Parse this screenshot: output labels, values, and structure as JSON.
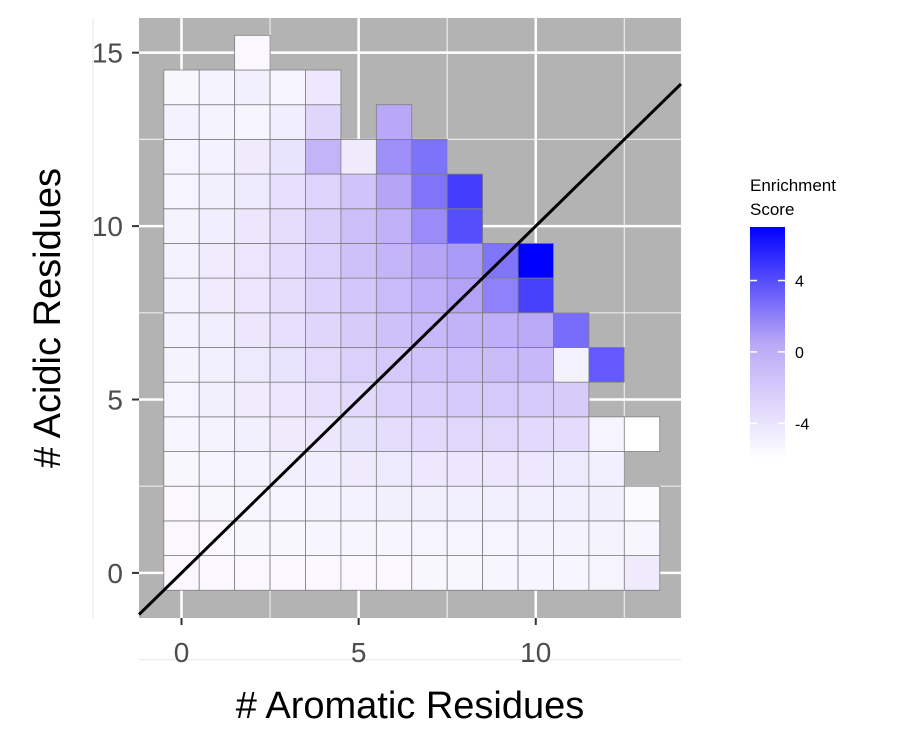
{
  "chart_data": {
    "type": "heatmap",
    "title": "",
    "xlabel": "# Aromatic Residues",
    "ylabel": "# Acidic Residues",
    "xlim": [
      -1.2,
      14.1
    ],
    "ylim": [
      -1.3,
      16.0
    ],
    "x_ticks": [
      0,
      5,
      10
    ],
    "y_ticks": [
      0,
      5,
      10,
      15
    ],
    "grid": true,
    "background_color": "#b3b3b3",
    "reference_line": {
      "slope": 1,
      "intercept": 0,
      "color": "#000000"
    },
    "legend": {
      "title_line1": "Enrichment",
      "title_line2": "Score",
      "position": "right",
      "ticks": [
        4,
        0,
        -4
      ],
      "range": [
        -6,
        7
      ],
      "colors": {
        "low": "#ffffff",
        "mid": "#b9a8f7",
        "high": "#0000ff"
      }
    },
    "cells": [
      {
        "x": 0,
        "y": 0,
        "v": -5.5
      },
      {
        "x": 1,
        "y": 0,
        "v": -5.5
      },
      {
        "x": 2,
        "y": 0,
        "v": -5.5
      },
      {
        "x": 3,
        "y": 0,
        "v": -5.5
      },
      {
        "x": 4,
        "y": 0,
        "v": -5.5
      },
      {
        "x": 5,
        "y": 0,
        "v": -5.5
      },
      {
        "x": 6,
        "y": 0,
        "v": -5.5
      },
      {
        "x": 7,
        "y": 0,
        "v": -5.4
      },
      {
        "x": 8,
        "y": 0,
        "v": -5.4
      },
      {
        "x": 9,
        "y": 0,
        "v": -5.3
      },
      {
        "x": 10,
        "y": 0,
        "v": -5.3
      },
      {
        "x": 11,
        "y": 0,
        "v": -5.3
      },
      {
        "x": 12,
        "y": 0,
        "v": -5.2
      },
      {
        "x": 13,
        "y": 0,
        "v": -4.5
      },
      {
        "x": 0,
        "y": 1,
        "v": -5.5
      },
      {
        "x": 1,
        "y": 1,
        "v": -5.5
      },
      {
        "x": 2,
        "y": 1,
        "v": -5.4
      },
      {
        "x": 3,
        "y": 1,
        "v": -5.4
      },
      {
        "x": 4,
        "y": 1,
        "v": -5.3
      },
      {
        "x": 5,
        "y": 1,
        "v": -5.3
      },
      {
        "x": 6,
        "y": 1,
        "v": -5.3
      },
      {
        "x": 7,
        "y": 1,
        "v": -5.2
      },
      {
        "x": 8,
        "y": 1,
        "v": -5.2
      },
      {
        "x": 9,
        "y": 1,
        "v": -5.2
      },
      {
        "x": 10,
        "y": 1,
        "v": -5.1
      },
      {
        "x": 11,
        "y": 1,
        "v": -5.1
      },
      {
        "x": 12,
        "y": 1,
        "v": -5.1
      },
      {
        "x": 13,
        "y": 1,
        "v": -5.3
      },
      {
        "x": 0,
        "y": 2,
        "v": -5.5
      },
      {
        "x": 1,
        "y": 2,
        "v": -5.4
      },
      {
        "x": 2,
        "y": 2,
        "v": -5.3
      },
      {
        "x": 3,
        "y": 2,
        "v": -5.2
      },
      {
        "x": 4,
        "y": 2,
        "v": -5.1
      },
      {
        "x": 5,
        "y": 2,
        "v": -5.0
      },
      {
        "x": 6,
        "y": 2,
        "v": -4.9
      },
      {
        "x": 7,
        "y": 2,
        "v": -4.9
      },
      {
        "x": 8,
        "y": 2,
        "v": -4.8
      },
      {
        "x": 9,
        "y": 2,
        "v": -4.8
      },
      {
        "x": 10,
        "y": 2,
        "v": -4.8
      },
      {
        "x": 11,
        "y": 2,
        "v": -4.8
      },
      {
        "x": 12,
        "y": 2,
        "v": -4.9
      },
      {
        "x": 13,
        "y": 2,
        "v": -5.6
      },
      {
        "x": 0,
        "y": 3,
        "v": -5.4
      },
      {
        "x": 1,
        "y": 3,
        "v": -5.2
      },
      {
        "x": 2,
        "y": 3,
        "v": -5.1
      },
      {
        "x": 3,
        "y": 3,
        "v": -4.9
      },
      {
        "x": 4,
        "y": 3,
        "v": -4.7
      },
      {
        "x": 5,
        "y": 3,
        "v": -4.5
      },
      {
        "x": 6,
        "y": 3,
        "v": -4.4
      },
      {
        "x": 7,
        "y": 3,
        "v": -4.3
      },
      {
        "x": 8,
        "y": 3,
        "v": -4.2
      },
      {
        "x": 9,
        "y": 3,
        "v": -4.2
      },
      {
        "x": 10,
        "y": 3,
        "v": -4.3
      },
      {
        "x": 11,
        "y": 3,
        "v": -4.4
      },
      {
        "x": 12,
        "y": 3,
        "v": -4.8
      },
      {
        "x": 0,
        "y": 4,
        "v": -5.3
      },
      {
        "x": 1,
        "y": 4,
        "v": -5.1
      },
      {
        "x": 2,
        "y": 4,
        "v": -4.8
      },
      {
        "x": 3,
        "y": 4,
        "v": -4.5
      },
      {
        "x": 4,
        "y": 4,
        "v": -4.2
      },
      {
        "x": 5,
        "y": 4,
        "v": -3.8
      },
      {
        "x": 6,
        "y": 4,
        "v": -3.5
      },
      {
        "x": 7,
        "y": 4,
        "v": -3.2
      },
      {
        "x": 8,
        "y": 4,
        "v": -3.1
      },
      {
        "x": 9,
        "y": 4,
        "v": -3.1
      },
      {
        "x": 10,
        "y": 4,
        "v": -3.2
      },
      {
        "x": 11,
        "y": 4,
        "v": -3.4
      },
      {
        "x": 12,
        "y": 4,
        "v": -5.2
      },
      {
        "x": 13,
        "y": 4,
        "v": -6.5
      },
      {
        "x": 0,
        "y": 5,
        "v": -5.2
      },
      {
        "x": 1,
        "y": 5,
        "v": -4.9
      },
      {
        "x": 2,
        "y": 5,
        "v": -4.6
      },
      {
        "x": 3,
        "y": 5,
        "v": -4.2
      },
      {
        "x": 4,
        "y": 5,
        "v": -3.7
      },
      {
        "x": 5,
        "y": 5,
        "v": -3.2
      },
      {
        "x": 6,
        "y": 5,
        "v": -2.7
      },
      {
        "x": 7,
        "y": 5,
        "v": -2.3
      },
      {
        "x": 8,
        "y": 5,
        "v": -2.1
      },
      {
        "x": 9,
        "y": 5,
        "v": -2.0
      },
      {
        "x": 10,
        "y": 5,
        "v": -2.1
      },
      {
        "x": 11,
        "y": 5,
        "v": -2.2
      },
      {
        "x": 0,
        "y": 6,
        "v": -5.1
      },
      {
        "x": 1,
        "y": 6,
        "v": -4.8
      },
      {
        "x": 2,
        "y": 6,
        "v": -4.4
      },
      {
        "x": 3,
        "y": 6,
        "v": -3.9
      },
      {
        "x": 4,
        "y": 6,
        "v": -3.3
      },
      {
        "x": 5,
        "y": 6,
        "v": -2.6
      },
      {
        "x": 6,
        "y": 6,
        "v": -2.0
      },
      {
        "x": 7,
        "y": 6,
        "v": -1.5
      },
      {
        "x": 8,
        "y": 6,
        "v": -1.2
      },
      {
        "x": 9,
        "y": 6,
        "v": -1.0
      },
      {
        "x": 10,
        "y": 6,
        "v": -0.8
      },
      {
        "x": 11,
        "y": 6,
        "v": -5.0
      },
      {
        "x": 12,
        "y": 6,
        "v": 3.5
      },
      {
        "x": 0,
        "y": 7,
        "v": -5.0
      },
      {
        "x": 1,
        "y": 7,
        "v": -4.7
      },
      {
        "x": 2,
        "y": 7,
        "v": -4.2
      },
      {
        "x": 3,
        "y": 7,
        "v": -3.7
      },
      {
        "x": 4,
        "y": 7,
        "v": -3.0
      },
      {
        "x": 5,
        "y": 7,
        "v": -2.2
      },
      {
        "x": 6,
        "y": 7,
        "v": -1.4
      },
      {
        "x": 7,
        "y": 7,
        "v": -0.8
      },
      {
        "x": 8,
        "y": 7,
        "v": -0.3
      },
      {
        "x": 9,
        "y": 7,
        "v": 0.0
      },
      {
        "x": 10,
        "y": 7,
        "v": 0.4
      },
      {
        "x": 11,
        "y": 7,
        "v": 2.8
      },
      {
        "x": 0,
        "y": 8,
        "v": -5.0
      },
      {
        "x": 1,
        "y": 8,
        "v": -4.6
      },
      {
        "x": 2,
        "y": 8,
        "v": -4.1
      },
      {
        "x": 3,
        "y": 8,
        "v": -3.5
      },
      {
        "x": 4,
        "y": 8,
        "v": -2.7
      },
      {
        "x": 5,
        "y": 8,
        "v": -1.8
      },
      {
        "x": 6,
        "y": 8,
        "v": -0.9
      },
      {
        "x": 7,
        "y": 8,
        "v": 0.0
      },
      {
        "x": 8,
        "y": 8,
        "v": 0.7
      },
      {
        "x": 9,
        "y": 8,
        "v": 2.0
      },
      {
        "x": 10,
        "y": 8,
        "v": 4.5
      },
      {
        "x": 0,
        "y": 9,
        "v": -5.0
      },
      {
        "x": 1,
        "y": 9,
        "v": -4.6
      },
      {
        "x": 2,
        "y": 9,
        "v": -4.1
      },
      {
        "x": 3,
        "y": 9,
        "v": -3.4
      },
      {
        "x": 4,
        "y": 9,
        "v": -2.5
      },
      {
        "x": 5,
        "y": 9,
        "v": -1.4
      },
      {
        "x": 6,
        "y": 9,
        "v": -0.5
      },
      {
        "x": 7,
        "y": 9,
        "v": 0.6
      },
      {
        "x": 8,
        "y": 9,
        "v": 1.0
      },
      {
        "x": 9,
        "y": 9,
        "v": 2.5
      },
      {
        "x": 10,
        "y": 9,
        "v": 7.0
      },
      {
        "x": 0,
        "y": 10,
        "v": -5.1
      },
      {
        "x": 1,
        "y": 10,
        "v": -4.7
      },
      {
        "x": 2,
        "y": 10,
        "v": -4.2
      },
      {
        "x": 3,
        "y": 10,
        "v": -3.5
      },
      {
        "x": 4,
        "y": 10,
        "v": -2.4
      },
      {
        "x": 5,
        "y": 10,
        "v": -1.2
      },
      {
        "x": 6,
        "y": 10,
        "v": -0.1
      },
      {
        "x": 7,
        "y": 10,
        "v": 1.6
      },
      {
        "x": 8,
        "y": 10,
        "v": 4.0
      },
      {
        "x": 0,
        "y": 11,
        "v": -5.2
      },
      {
        "x": 1,
        "y": 11,
        "v": -4.9
      },
      {
        "x": 2,
        "y": 11,
        "v": -4.4
      },
      {
        "x": 3,
        "y": 11,
        "v": -3.6
      },
      {
        "x": 4,
        "y": 11,
        "v": -2.8
      },
      {
        "x": 5,
        "y": 11,
        "v": -1.5
      },
      {
        "x": 6,
        "y": 11,
        "v": 0.6
      },
      {
        "x": 7,
        "y": 11,
        "v": 2.5
      },
      {
        "x": 8,
        "y": 11,
        "v": 4.6
      },
      {
        "x": 0,
        "y": 12,
        "v": -5.2
      },
      {
        "x": 1,
        "y": 12,
        "v": -5.0
      },
      {
        "x": 2,
        "y": 12,
        "v": -4.5
      },
      {
        "x": 3,
        "y": 12,
        "v": -4.0
      },
      {
        "x": 4,
        "y": 12,
        "v": -0.4
      },
      {
        "x": 5,
        "y": 12,
        "v": -4.5
      },
      {
        "x": 6,
        "y": 12,
        "v": 1.5
      },
      {
        "x": 7,
        "y": 12,
        "v": 2.6
      },
      {
        "x": 0,
        "y": 13,
        "v": -5.0
      },
      {
        "x": 1,
        "y": 13,
        "v": -5.1
      },
      {
        "x": 2,
        "y": 13,
        "v": -5.3
      },
      {
        "x": 3,
        "y": 13,
        "v": -4.7
      },
      {
        "x": 4,
        "y": 13,
        "v": -3.0
      },
      {
        "x": 6,
        "y": 13,
        "v": 0.5
      },
      {
        "x": 0,
        "y": 14,
        "v": -5.4
      },
      {
        "x": 1,
        "y": 14,
        "v": -5.1
      },
      {
        "x": 2,
        "y": 14,
        "v": -4.8
      },
      {
        "x": 3,
        "y": 14,
        "v": -5.3
      },
      {
        "x": 4,
        "y": 14,
        "v": -4.3
      },
      {
        "x": 2,
        "y": 15,
        "v": -5.5
      }
    ]
  }
}
